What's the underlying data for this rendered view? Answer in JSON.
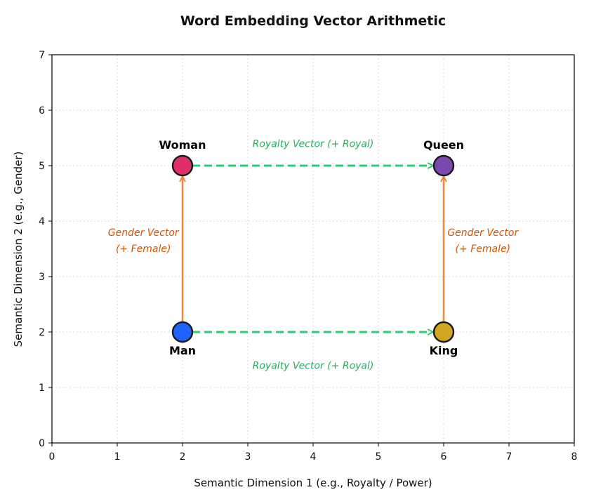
{
  "chart_data": {
    "type": "scatter",
    "title": "Word Embedding Vector Arithmetic",
    "xlabel": "Semantic Dimension 1 (e.g., Royalty / Power)",
    "ylabel": "Semantic Dimension 2 (e.g., Gender)",
    "xlim": [
      0,
      8
    ],
    "ylim": [
      0,
      7
    ],
    "xticks": [
      "0",
      "1",
      "2",
      "3",
      "4",
      "5",
      "6",
      "7",
      "8"
    ],
    "yticks": [
      "0",
      "1",
      "2",
      "3",
      "4",
      "5",
      "6",
      "7"
    ],
    "grid": true,
    "points": [
      {
        "label": "Man",
        "x": 2,
        "y": 2,
        "color": "#1f63ff",
        "label_pos": "below"
      },
      {
        "label": "King",
        "x": 6,
        "y": 2,
        "color": "#d4a520",
        "label_pos": "below"
      },
      {
        "label": "Woman",
        "x": 2,
        "y": 5,
        "color": "#e0306a",
        "label_pos": "above"
      },
      {
        "label": "Queen",
        "x": 6,
        "y": 5,
        "color": "#7d47b0",
        "label_pos": "above"
      }
    ],
    "arrows": [
      {
        "from": [
          2,
          2
        ],
        "to": [
          6,
          2
        ],
        "style": "dashed",
        "color": "#2ecc71"
      },
      {
        "from": [
          2,
          5
        ],
        "to": [
          6,
          5
        ],
        "style": "dashed",
        "color": "#2ecc71"
      },
      {
        "from": [
          2,
          2
        ],
        "to": [
          2,
          5
        ],
        "style": "solid",
        "color": "#f0883e"
      },
      {
        "from": [
          6,
          2
        ],
        "to": [
          6,
          5
        ],
        "style": "solid",
        "color": "#f0883e"
      }
    ],
    "annotations": [
      {
        "text": "Royalty Vector (+ Royal)",
        "x": 4,
        "y": 5.4,
        "color": "#27ae60"
      },
      {
        "text": "Royalty Vector (+ Royal)",
        "x": 4,
        "y": 1.4,
        "color": "#27ae60"
      },
      {
        "text": "Gender Vector\n(+ Female)",
        "x": 1.4,
        "y": 3.65,
        "color": "#d35400"
      },
      {
        "text": "Gender Vector\n(+ Female)",
        "x": 6.6,
        "y": 3.65,
        "color": "#d35400"
      }
    ]
  }
}
